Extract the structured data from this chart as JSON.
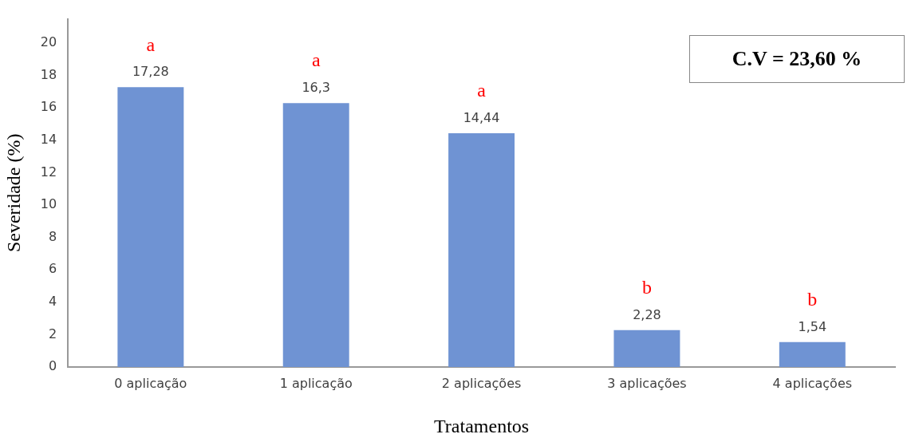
{
  "chart_data": {
    "type": "bar",
    "xlabel": "Tratamentos",
    "ylabel": "Severidade (%)",
    "categories": [
      "0 aplicação",
      "1 aplicação",
      "2 aplicações",
      "3 aplicações",
      "4 aplicações"
    ],
    "values": [
      17.28,
      16.3,
      14.44,
      2.28,
      1.54
    ],
    "value_labels": [
      "17,28",
      "16,3",
      "14,44",
      "2,28",
      "1,54"
    ],
    "color": "#6f93d3",
    "ylim": [
      0,
      21.5
    ],
    "yticks": [
      0,
      2,
      4,
      6,
      8,
      10,
      12,
      14,
      16,
      18,
      20
    ],
    "grid": false,
    "legend": false,
    "annotations": [
      "a",
      "a",
      "a",
      "b",
      "b",
      "C.V = 23,60 %"
    ]
  }
}
